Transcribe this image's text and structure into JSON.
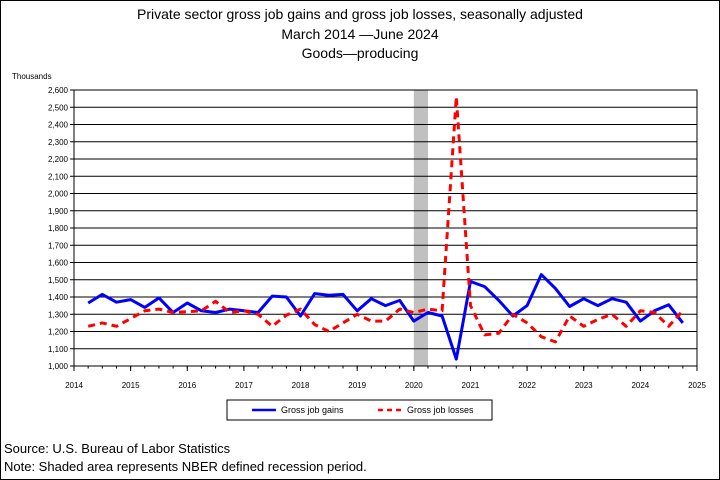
{
  "chart_data": {
    "type": "line",
    "title": "Private sector gross job gains and gross job losses, seasonally adjusted",
    "subtitle_period": "March 2014 —June 2024",
    "subtitle_sector": "Goods—producing",
    "ylabel": "Thousands",
    "xlabel": "",
    "ylim": [
      1000,
      2600
    ],
    "ytick_step": 100,
    "xlim": [
      2014,
      2025
    ],
    "xticks": [
      "2014",
      "2015",
      "2016",
      "2017",
      "2018",
      "2019",
      "2020",
      "2021",
      "2022",
      "2023",
      "2024",
      "2025"
    ],
    "grid": "horizontal",
    "legend_position": "bottom",
    "recession_shading": {
      "start": 2020.0,
      "end": 2020.25,
      "color": "#c0c0c0"
    },
    "series": [
      {
        "name": "Gross job gains",
        "color": "#0000ff",
        "style": "solid",
        "values": [
          1365,
          1415,
          1370,
          1385,
          1340,
          1395,
          1310,
          1365,
          1320,
          1310,
          1330,
          1320,
          1310,
          1405,
          1400,
          1290,
          1420,
          1410,
          1415,
          1320,
          1390,
          1350,
          1380,
          1260,
          1310,
          1290,
          1040,
          1490,
          1460,
          1380,
          1290,
          1350,
          1530,
          1450,
          1345,
          1390,
          1350,
          1390,
          1370,
          1260,
          1320,
          1355,
          1250
        ]
      },
      {
        "name": "Gross job losses",
        "color": "#ff0000",
        "style": "dashed",
        "values": [
          1230,
          1250,
          1230,
          1275,
          1320,
          1330,
          1310,
          1315,
          1320,
          1375,
          1310,
          1320,
          1300,
          1230,
          1295,
          1330,
          1240,
          1200,
          1250,
          1300,
          1260,
          1260,
          1330,
          1310,
          1330,
          1320,
          2560,
          1350,
          1180,
          1190,
          1300,
          1250,
          1170,
          1140,
          1290,
          1230,
          1270,
          1300,
          1230,
          1320,
          1310,
          1230,
          1320
        ]
      }
    ],
    "x_start": 2014.25,
    "x_step": 0.25
  },
  "source_note": "Source: U.S. Bureau of Labor Statistics",
  "shading_note": "Note: Shaded area represents NBER defined recession period."
}
